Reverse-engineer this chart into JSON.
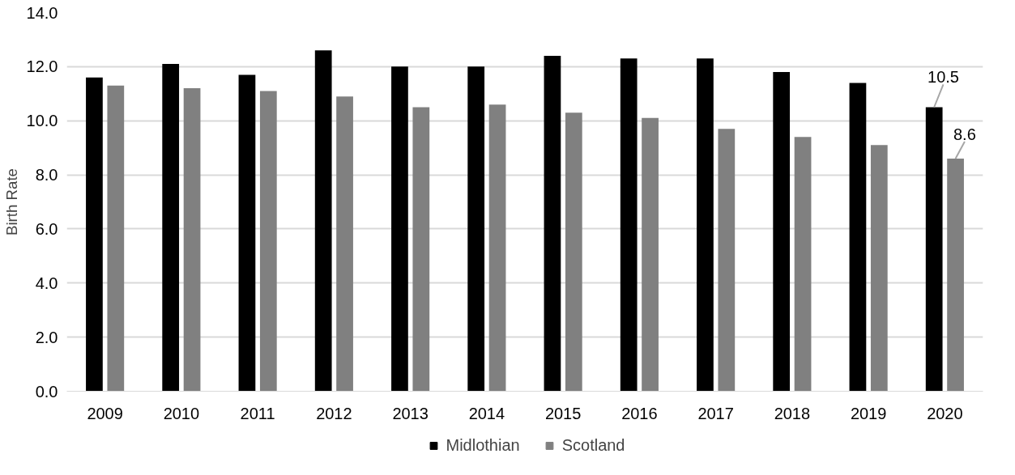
{
  "chart_data": {
    "type": "bar",
    "ylabel": "Birth Rate",
    "categories": [
      "2009",
      "2010",
      "2011",
      "2012",
      "2013",
      "2014",
      "2015",
      "2016",
      "2017",
      "2018",
      "2019",
      "2020"
    ],
    "series": [
      {
        "name": "Midlothian",
        "color": "#000000",
        "values": [
          11.6,
          12.1,
          11.7,
          12.6,
          12.0,
          12.0,
          12.4,
          12.3,
          12.3,
          11.8,
          11.4,
          10.5
        ],
        "value_labels": [
          null,
          null,
          null,
          null,
          null,
          null,
          null,
          null,
          null,
          null,
          null,
          "10.5"
        ]
      },
      {
        "name": "Scotland",
        "color": "#808080",
        "values": [
          11.3,
          11.2,
          11.1,
          10.9,
          10.5,
          10.6,
          10.3,
          10.1,
          9.7,
          9.4,
          9.1,
          8.6
        ],
        "value_labels": [
          null,
          null,
          null,
          null,
          null,
          null,
          null,
          null,
          null,
          null,
          null,
          "8.6"
        ]
      }
    ],
    "ylim": [
      0,
      14
    ],
    "yticks": [
      {
        "value": 0,
        "label": "0.0"
      },
      {
        "value": 2,
        "label": "2.0"
      },
      {
        "value": 4,
        "label": "4.0"
      },
      {
        "value": 6,
        "label": "6.0"
      },
      {
        "value": 8,
        "label": "8.0"
      },
      {
        "value": 10,
        "label": "10.0"
      },
      {
        "value": 12,
        "label": "12.0"
      },
      {
        "value": 14,
        "label": "14.0"
      }
    ],
    "grid": "y",
    "legend": "bottom"
  }
}
